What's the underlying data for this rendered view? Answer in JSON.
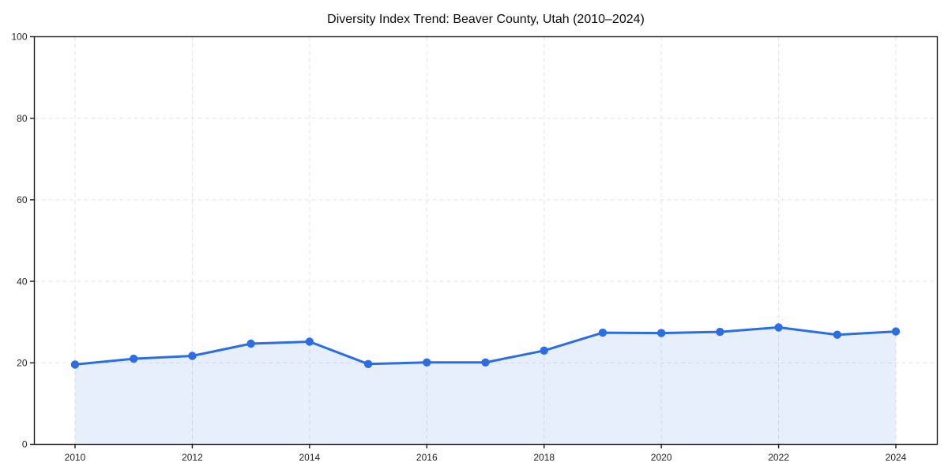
{
  "chart_data": {
    "type": "area",
    "title": "Diversity Index Trend: Beaver County, Utah (2010–2024)",
    "x": [
      2010,
      2011,
      2012,
      2013,
      2014,
      2015,
      2016,
      2017,
      2018,
      2019,
      2020,
      2021,
      2022,
      2023,
      2024
    ],
    "values": [
      19.6,
      21.0,
      21.7,
      24.7,
      25.2,
      19.7,
      20.1,
      20.1,
      23.0,
      27.4,
      27.3,
      27.6,
      28.7,
      26.9,
      27.7
    ],
    "xticks": [
      2010,
      2012,
      2014,
      2016,
      2018,
      2020,
      2022,
      2024
    ],
    "yticks": [
      0,
      20,
      40,
      60,
      80,
      100
    ],
    "ylim": [
      0,
      100
    ],
    "xlabel": "",
    "ylabel": "",
    "grid": true,
    "legend_position": "none",
    "marker": "circle",
    "colors": {
      "line": "#2b6de3",
      "marker": "#2b6de3",
      "fill": "rgba(43,109,227,0.11)",
      "grid": "#e3e3e3",
      "axis": "#1c1c1c",
      "tick_label": "#1f1f1f",
      "title": "#0d0d0d",
      "background": "#ffffff"
    }
  }
}
